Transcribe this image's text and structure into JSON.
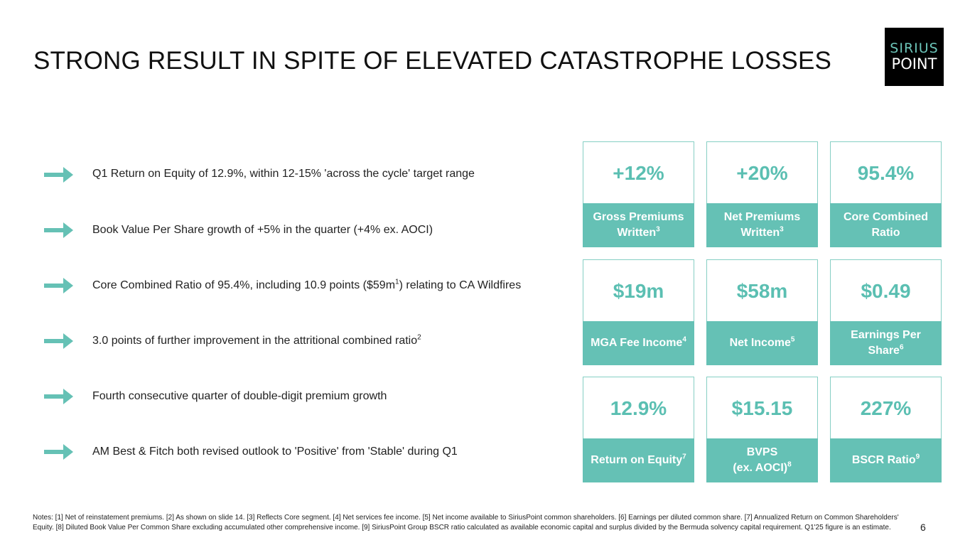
{
  "title": "STRONG RESULT IN SPITE OF ELEVATED CATASTROPHE LOSSES",
  "logo": {
    "line1": "SIRIUS",
    "line2": "POINT"
  },
  "accent_color": "#65c1b5",
  "bullets": [
    {
      "text": "Q1 Return on Equity of 12.9%, within 12-15% 'across the cycle' target range"
    },
    {
      "text": "Book Value Per Share growth of +5% in the quarter (+4% ex. AOCI)"
    },
    {
      "pre": "Core Combined Ratio of 95.4%, including 10.9 points ($59m",
      "sup": "1",
      "post": ") relating to CA Wildfires"
    },
    {
      "pre": "3.0 points of further improvement in the attritional combined ratio",
      "sup": "2"
    },
    {
      "text": "Fourth consecutive quarter of double-digit premium growth"
    },
    {
      "text": "AM Best & Fitch both revised outlook to 'Positive' from 'Stable' during Q1"
    }
  ],
  "metrics": [
    {
      "value": "+12%",
      "label1": "Gross Premiums",
      "label2": "Written",
      "sup": "3"
    },
    {
      "value": "+20%",
      "label1": "Net Premiums",
      "label2": "Written",
      "sup": "3"
    },
    {
      "value": "95.4%",
      "label1": "Core Combined",
      "label2": "Ratio",
      "sup": ""
    },
    {
      "value": "$19m",
      "label1": "",
      "label2": "MGA Fee Income",
      "sup": "4"
    },
    {
      "value": "$58m",
      "label1": "",
      "label2": "Net Income",
      "sup": "5"
    },
    {
      "value": "$0.49",
      "label1": "Earnings Per",
      "label2": "Share",
      "sup": "6"
    },
    {
      "value": "12.9%",
      "label1": "",
      "label2": "Return on Equity",
      "sup": "7"
    },
    {
      "value": "$15.15",
      "label1": "BVPS",
      "label2": "(ex. AOCI)",
      "sup": "8"
    },
    {
      "value": "227%",
      "label1": "",
      "label2": "BSCR Ratio",
      "sup": "9"
    }
  ],
  "notes": "Notes: [1] Net of reinstatement premiums. [2] As shown on slide 14. [3] Reflects Core segment. [4] Net services fee income. [5] Net income available to SiriusPoint common shareholders. [6] Earnings per diluted common share. [7] Annualized Return on Common Shareholders' Equity. [8] Diluted Book Value Per Common Share excluding accumulated other comprehensive income. [9] SiriusPoint Group BSCR ratio calculated as available economic capital and surplus divided by the Bermuda solvency capital requirement. Q1'25 figure is an estimate.",
  "page_number": "6"
}
